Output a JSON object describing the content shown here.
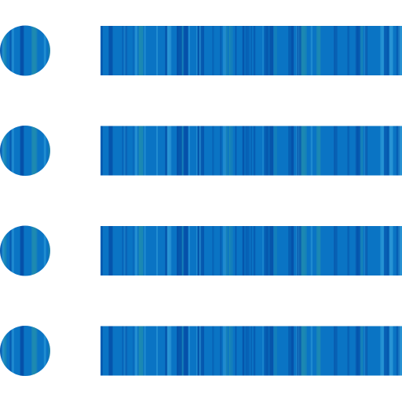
{
  "icon": {
    "name": "list-bullets-icon",
    "bullet_count": 4,
    "colors": {
      "background": "#ffffff",
      "base": "#0a74c4",
      "dark_streak": "#0450a8",
      "light_streak": "#2b97d6",
      "teal_streak": "#1e8bb0"
    }
  }
}
